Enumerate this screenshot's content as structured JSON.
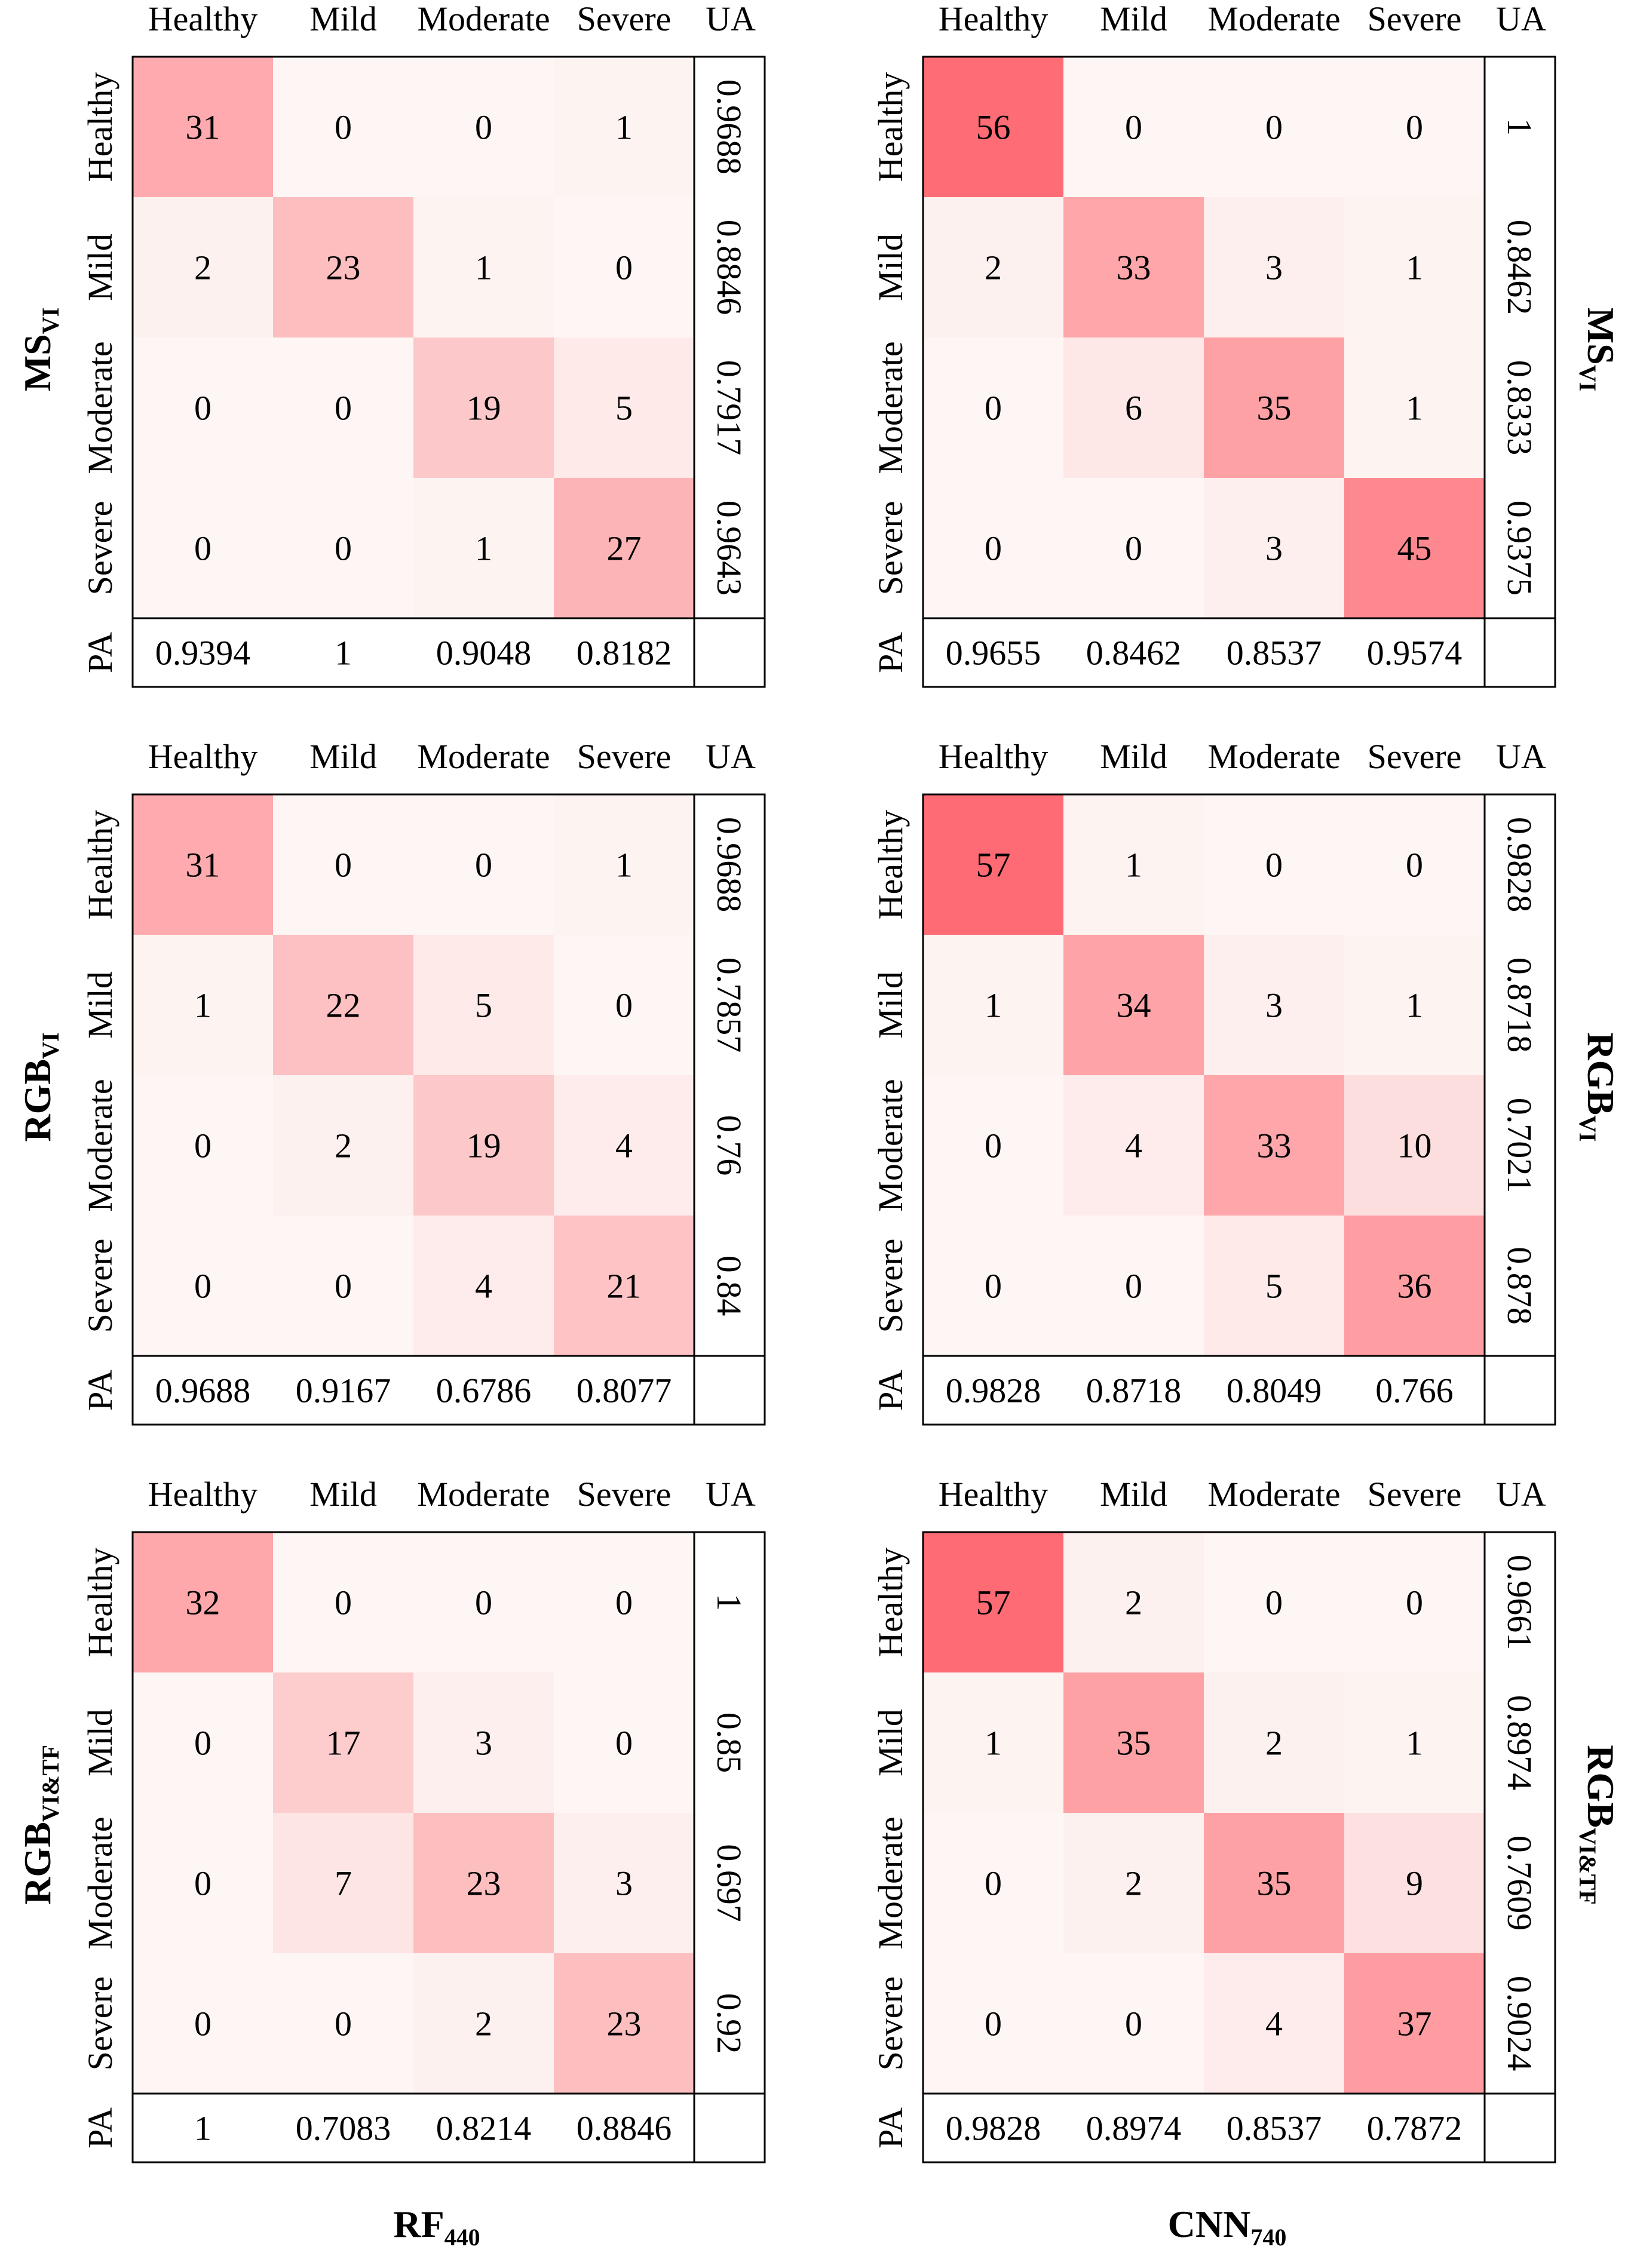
{
  "chart_data": {
    "type": "heatmap",
    "classes": [
      "Healthy",
      "Mild",
      "Moderate",
      "Severe"
    ],
    "ua_label": "UA",
    "pa_label": "PA",
    "colors": {
      "min": "#fdf6f4",
      "max": "#fe6b74",
      "vmax": 57
    },
    "columns": [
      {
        "base": "RF",
        "sub": "440"
      },
      {
        "base": "CNN",
        "sub": "740"
      }
    ],
    "rows": [
      {
        "base": "MS",
        "sub": "VI"
      },
      {
        "base": "RGB",
        "sub": "VI"
      },
      {
        "base": "RGB",
        "sub": "VI&TF"
      }
    ],
    "panels": [
      {
        "matrix": [
          [
            31,
            0,
            0,
            1
          ],
          [
            2,
            23,
            1,
            0
          ],
          [
            0,
            0,
            19,
            5
          ],
          [
            0,
            0,
            1,
            27
          ]
        ],
        "ua": [
          "0.9688",
          "0.8846",
          "0.7917",
          "0.9643"
        ],
        "pa": [
          "0.9394",
          "1",
          "0.9048",
          "0.8182"
        ]
      },
      {
        "matrix": [
          [
            56,
            0,
            0,
            0
          ],
          [
            2,
            33,
            3,
            1
          ],
          [
            0,
            6,
            35,
            1
          ],
          [
            0,
            0,
            3,
            45
          ]
        ],
        "ua": [
          "1",
          "0.8462",
          "0.8333",
          "0.9375"
        ],
        "pa": [
          "0.9655",
          "0.8462",
          "0.8537",
          "0.9574"
        ]
      },
      {
        "matrix": [
          [
            31,
            0,
            0,
            1
          ],
          [
            1,
            22,
            5,
            0
          ],
          [
            0,
            2,
            19,
            4
          ],
          [
            0,
            0,
            4,
            21
          ]
        ],
        "ua": [
          "0.9688",
          "0.7857",
          "0.76",
          "0.84"
        ],
        "pa": [
          "0.9688",
          "0.9167",
          "0.6786",
          "0.8077"
        ]
      },
      {
        "matrix": [
          [
            57,
            1,
            0,
            0
          ],
          [
            1,
            34,
            3,
            1
          ],
          [
            0,
            4,
            33,
            10
          ],
          [
            0,
            0,
            5,
            36
          ]
        ],
        "ua": [
          "0.9828",
          "0.8718",
          "0.7021",
          "0.878"
        ],
        "pa": [
          "0.9828",
          "0.8718",
          "0.8049",
          "0.766"
        ]
      },
      {
        "matrix": [
          [
            32,
            0,
            0,
            0
          ],
          [
            0,
            17,
            3,
            0
          ],
          [
            0,
            7,
            23,
            3
          ],
          [
            0,
            0,
            2,
            23
          ]
        ],
        "ua": [
          "1",
          "0.85",
          "0.697",
          "0.92"
        ],
        "pa": [
          "1",
          "0.7083",
          "0.8214",
          "0.8846"
        ]
      },
      {
        "matrix": [
          [
            57,
            2,
            0,
            0
          ],
          [
            1,
            35,
            2,
            1
          ],
          [
            0,
            2,
            35,
            9
          ],
          [
            0,
            0,
            4,
            37
          ]
        ],
        "ua": [
          "0.9661",
          "0.8974",
          "0.7609",
          "0.9024"
        ],
        "pa": [
          "0.9828",
          "0.8974",
          "0.8537",
          "0.7872"
        ]
      }
    ]
  }
}
